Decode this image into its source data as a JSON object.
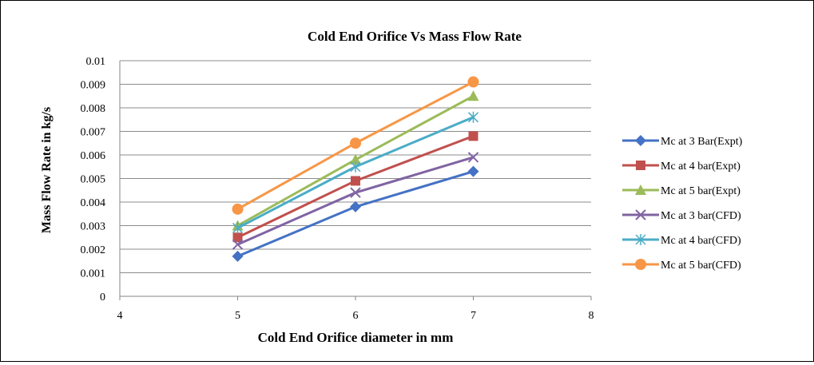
{
  "chart_data": {
    "type": "line",
    "title": "Cold End Orifice Vs Mass Flow Rate",
    "xlabel": "Cold End Orifice diameter in mm",
    "ylabel": "Mass Flow Rate in kg/s",
    "xlim": [
      4,
      8
    ],
    "ylim": [
      0,
      0.01
    ],
    "x_ticks": [
      "4",
      "5",
      "6",
      "7",
      "8"
    ],
    "y_ticks": [
      "0",
      "0.001",
      "0.002",
      "0.003",
      "0.004",
      "0.005",
      "0.006",
      "0.007",
      "0.008",
      "0.009",
      "0.01"
    ],
    "grid": "horizontal",
    "legend_position": "right",
    "x": [
      5,
      6,
      7
    ],
    "series": [
      {
        "name": "Mc at 3 Bar(Expt)",
        "values": [
          0.0017,
          0.0038,
          0.0053
        ],
        "color": "#4472C4",
        "marker": "diamond"
      },
      {
        "name": "Mc at 4 bar(Expt)",
        "values": [
          0.0025,
          0.0049,
          0.0068
        ],
        "color": "#C0504D",
        "marker": "square"
      },
      {
        "name": "Mc at 5 bar(Expt)",
        "values": [
          0.003,
          0.0058,
          0.0085
        ],
        "color": "#9BBB59",
        "marker": "triangle"
      },
      {
        "name": "Mc at 3 bar(CFD)",
        "values": [
          0.0022,
          0.0044,
          0.0059
        ],
        "color": "#8064A2",
        "marker": "x"
      },
      {
        "name": "Mc at 4 bar(CFD)",
        "values": [
          0.0029,
          0.0055,
          0.0076
        ],
        "color": "#4BACC6",
        "marker": "star"
      },
      {
        "name": "Mc at 5 bar(CFD)",
        "values": [
          0.0037,
          0.0065,
          0.0091
        ],
        "color": "#F79646",
        "marker": "circle"
      }
    ]
  }
}
